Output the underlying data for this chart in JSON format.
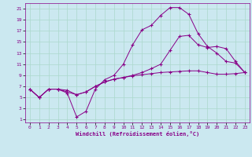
{
  "xlabel": "Windchill (Refroidissement éolien,°C)",
  "bg_color": "#cbe8f0",
  "line_color": "#880088",
  "grid_color": "#aad8cc",
  "xlim": [
    -0.5,
    23.5
  ],
  "ylim": [
    0.5,
    22
  ],
  "xticks": [
    0,
    1,
    2,
    3,
    4,
    5,
    6,
    7,
    8,
    9,
    10,
    11,
    12,
    13,
    14,
    15,
    16,
    17,
    18,
    19,
    20,
    21,
    22,
    23
  ],
  "yticks": [
    1,
    3,
    5,
    7,
    9,
    11,
    13,
    15,
    17,
    19,
    21
  ],
  "line1_x": [
    0,
    1,
    2,
    3,
    4,
    5,
    6,
    7,
    8,
    9,
    10,
    11,
    12,
    13,
    14,
    15,
    16,
    17,
    18,
    19,
    20,
    21,
    22,
    23
  ],
  "line1_y": [
    6.5,
    5.0,
    6.5,
    6.5,
    6.3,
    5.5,
    6.0,
    7.0,
    7.8,
    8.3,
    8.6,
    8.9,
    9.1,
    9.3,
    9.5,
    9.6,
    9.7,
    9.8,
    9.8,
    9.5,
    9.2,
    9.2,
    9.3,
    9.5
  ],
  "line2_x": [
    0,
    1,
    2,
    3,
    4,
    5,
    6,
    7,
    8,
    9,
    10,
    11,
    12,
    13,
    14,
    15,
    16,
    17,
    18,
    19,
    20,
    21,
    22,
    23
  ],
  "line2_y": [
    6.5,
    5.0,
    6.5,
    6.5,
    5.8,
    1.5,
    2.5,
    6.5,
    8.2,
    9.0,
    11.0,
    14.5,
    17.2,
    18.0,
    19.8,
    21.2,
    21.2,
    20.0,
    16.5,
    14.2,
    13.0,
    11.5,
    11.2,
    9.5
  ],
  "line3_x": [
    0,
    1,
    2,
    3,
    4,
    5,
    6,
    7,
    8,
    9,
    10,
    11,
    12,
    13,
    14,
    15,
    16,
    17,
    18,
    19,
    20,
    21,
    22,
    23
  ],
  "line3_y": [
    6.5,
    5.0,
    6.5,
    6.5,
    6.0,
    5.5,
    6.0,
    7.0,
    7.8,
    8.3,
    8.6,
    9.0,
    9.5,
    10.2,
    11.0,
    13.5,
    16.0,
    16.2,
    14.5,
    14.0,
    14.2,
    13.8,
    11.5,
    9.5
  ]
}
